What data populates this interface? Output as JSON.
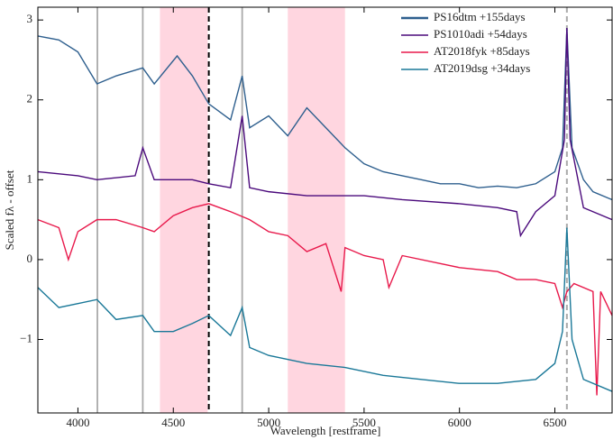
{
  "chart_data": {
    "type": "line",
    "x_label": "Wavelength [restframe]",
    "y_label": "Scaled fλ - offset",
    "xlim": [
      3790,
      6800
    ],
    "ylim": [
      -1.92,
      3.16
    ],
    "xticks": [
      4000,
      4500,
      5000,
      5500,
      6000,
      6500
    ],
    "yticks": [
      {
        "value": -1,
        "label": "−1"
      },
      0,
      1,
      2,
      3
    ],
    "legend": "upper right",
    "bands": [
      [
        4430,
        4680
      ],
      [
        5100,
        5400
      ]
    ],
    "band_color": "#ffd6e0",
    "gray_lines": [
      4102,
      4340,
      4861
    ],
    "dashed_gray_line": 6563,
    "dashed_black_line": 4686,
    "series": [
      {
        "name": "PS16dtm +155days",
        "color": "#2e5f8e",
        "x": [
          3790,
          3900,
          4000,
          4100,
          4200,
          4340,
          4400,
          4520,
          4600,
          4686,
          4800,
          4861,
          4900,
          5000,
          5100,
          5200,
          5300,
          5400,
          5500,
          5600,
          5700,
          5800,
          5900,
          6000,
          6100,
          6200,
          6300,
          6400,
          6500,
          6540,
          6563,
          6590,
          6650,
          6700,
          6800
        ],
        "values": [
          2.8,
          2.75,
          2.6,
          2.2,
          2.3,
          2.4,
          2.2,
          2.55,
          2.3,
          1.95,
          1.75,
          2.3,
          1.65,
          1.8,
          1.55,
          1.9,
          1.65,
          1.4,
          1.2,
          1.1,
          1.05,
          1.0,
          0.95,
          0.95,
          0.9,
          0.92,
          0.9,
          0.95,
          1.1,
          1.4,
          2.9,
          1.4,
          1.0,
          0.85,
          0.75
        ]
      },
      {
        "name": "PS1010adi +54days",
        "color": "#4b0a7c",
        "x": [
          3790,
          4000,
          4100,
          4300,
          4340,
          4400,
          4600,
          4686,
          4800,
          4861,
          4900,
          5000,
          5200,
          5500,
          5700,
          6000,
          6200,
          6300,
          6320,
          6400,
          6500,
          6550,
          6563,
          6580,
          6650,
          6800
        ],
        "values": [
          1.1,
          1.05,
          1.0,
          1.05,
          1.4,
          1.0,
          1.0,
          0.95,
          0.9,
          1.8,
          0.9,
          0.85,
          0.8,
          0.8,
          0.75,
          0.7,
          0.65,
          0.6,
          0.3,
          0.6,
          0.8,
          1.5,
          2.9,
          1.5,
          0.65,
          0.5
        ]
      },
      {
        "name": "AT2018fyk +85days",
        "color": "#e8194b",
        "x": [
          3790,
          3900,
          3950,
          4000,
          4100,
          4200,
          4340,
          4400,
          4500,
          4600,
          4686,
          4800,
          4900,
          5000,
          5100,
          5200,
          5300,
          5380,
          5400,
          5500,
          5600,
          5630,
          5700,
          6000,
          6200,
          6300,
          6400,
          6500,
          6540,
          6563,
          6600,
          6700,
          6720,
          6740,
          6800
        ],
        "values": [
          0.5,
          0.4,
          0.0,
          0.35,
          0.5,
          0.5,
          0.4,
          0.35,
          0.55,
          0.65,
          0.7,
          0.6,
          0.5,
          0.35,
          0.3,
          0.1,
          0.2,
          -0.4,
          0.15,
          0.05,
          0.0,
          -0.35,
          0.05,
          -0.1,
          -0.15,
          -0.25,
          -0.25,
          -0.3,
          -0.6,
          -0.4,
          -0.3,
          -0.4,
          -1.7,
          -0.4,
          -0.7
        ]
      },
      {
        "name": "AT2019dsg +34days",
        "color": "#1a7898",
        "x": [
          3790,
          3900,
          4000,
          4100,
          4200,
          4340,
          4400,
          4500,
          4600,
          4686,
          4800,
          4861,
          4900,
          5000,
          5200,
          5400,
          5600,
          5800,
          6000,
          6200,
          6400,
          6500,
          6540,
          6563,
          6590,
          6650,
          6800
        ],
        "values": [
          -0.35,
          -0.6,
          -0.55,
          -0.5,
          -0.75,
          -0.7,
          -0.9,
          -0.9,
          -0.8,
          -0.7,
          -0.95,
          -0.6,
          -1.1,
          -1.2,
          -1.3,
          -1.35,
          -1.45,
          -1.5,
          -1.55,
          -1.55,
          -1.5,
          -1.3,
          -0.9,
          0.4,
          -1.0,
          -1.5,
          -1.65
        ]
      }
    ]
  }
}
